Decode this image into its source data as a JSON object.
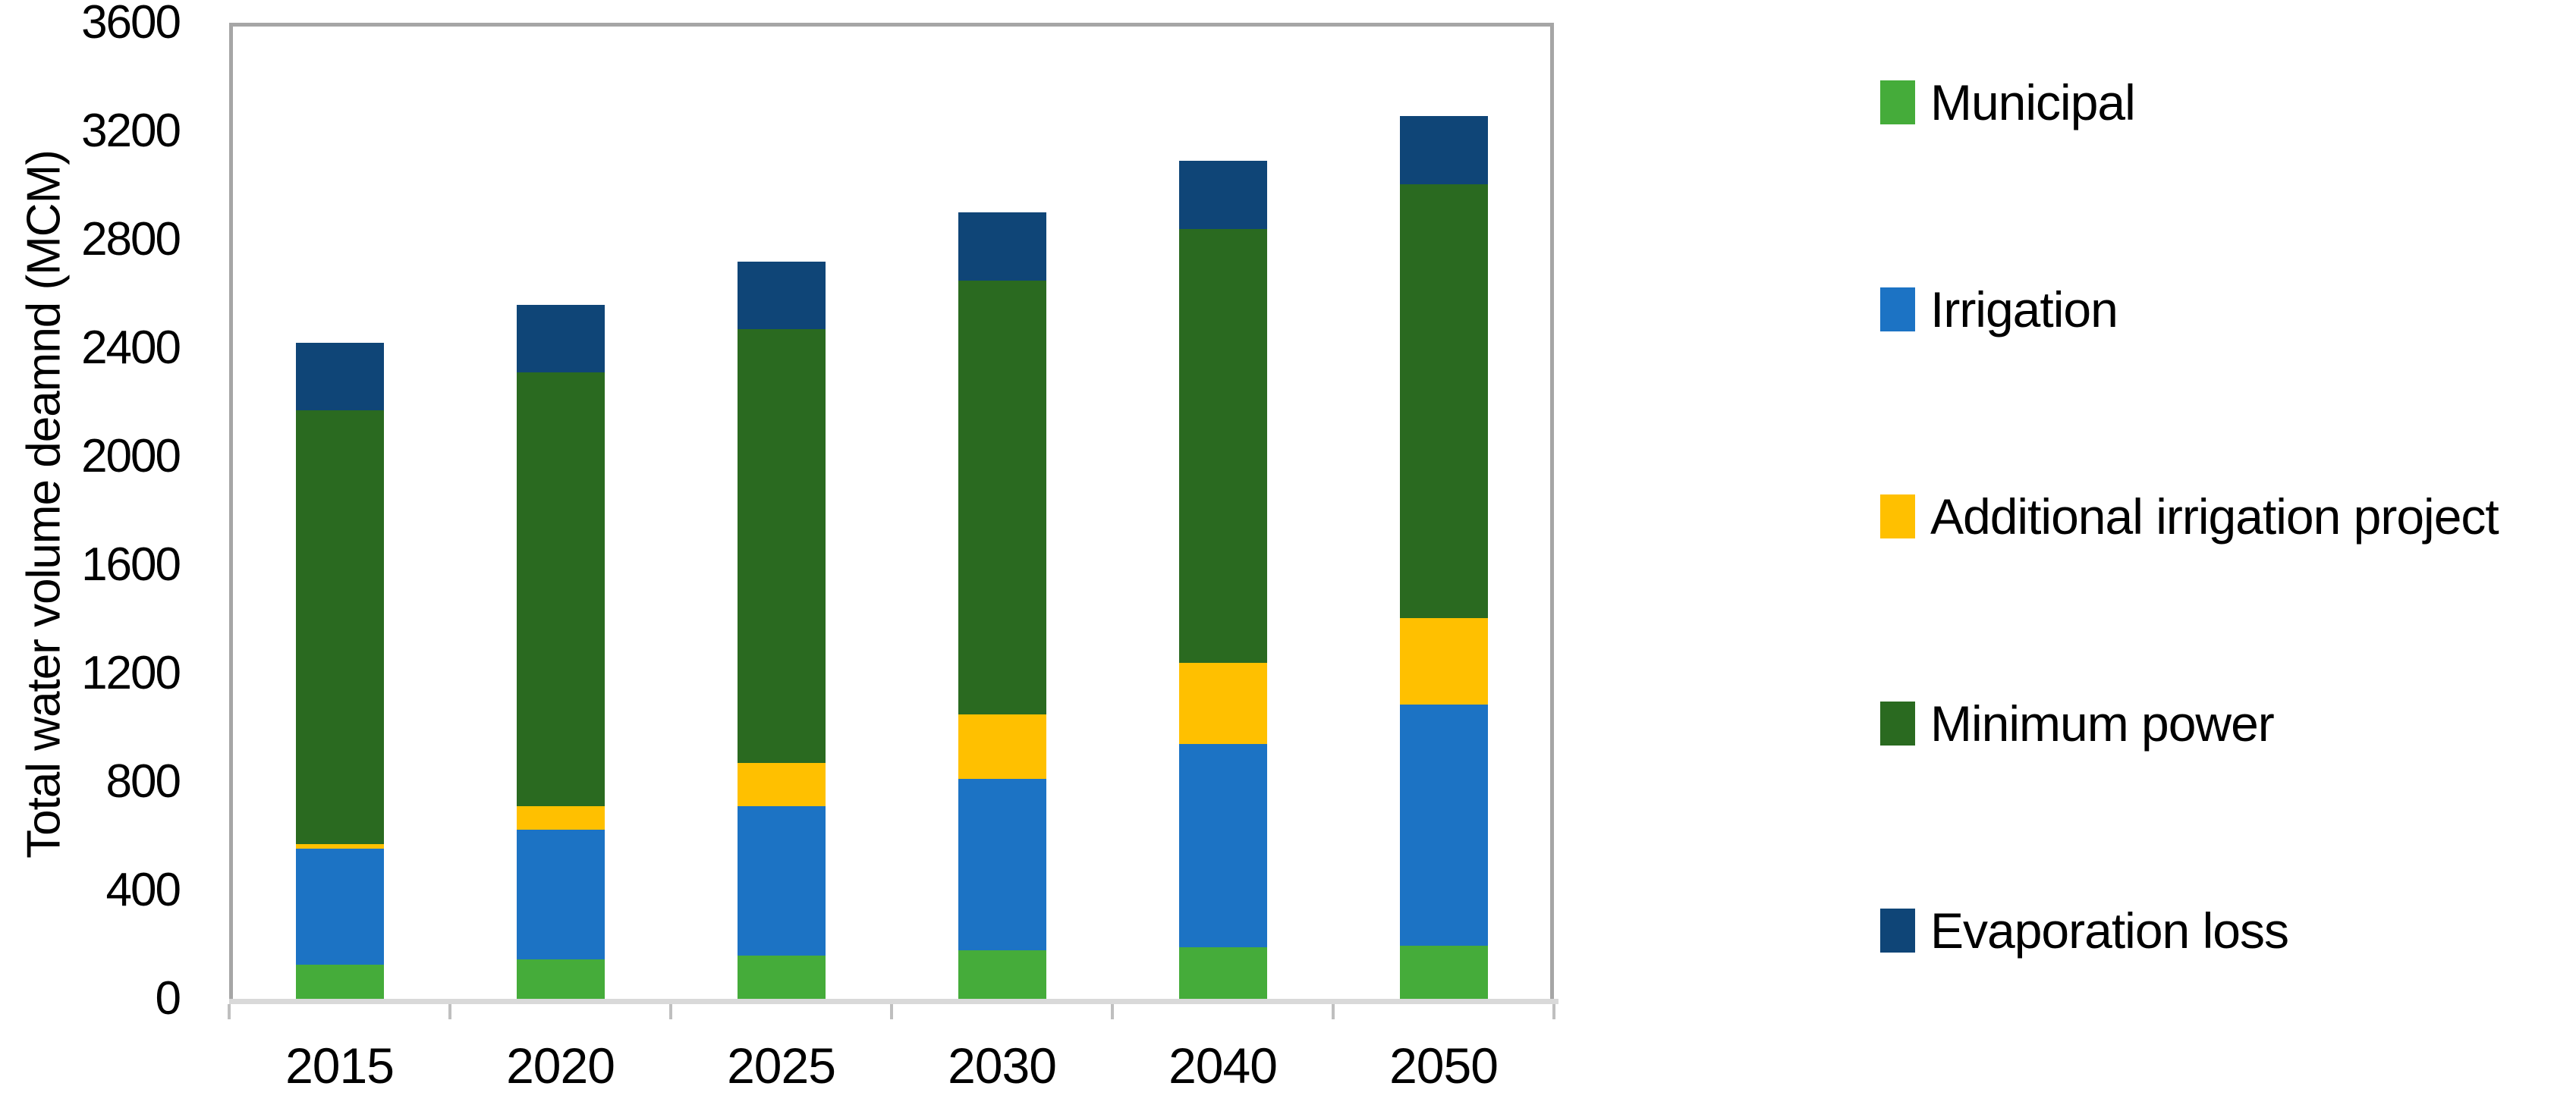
{
  "chart_data": {
    "type": "bar",
    "stacked": true,
    "title": "",
    "categories": [
      "2015",
      "2020",
      "2025",
      "2030",
      "2040",
      "2050"
    ],
    "series": [
      {
        "name": "Municipal",
        "color": "#45AC3A",
        "values": [
          125,
          145,
          160,
          180,
          190,
          195
        ]
      },
      {
        "name": "Irrigation",
        "color": "#1C73C4",
        "values": [
          430,
          480,
          550,
          630,
          750,
          890
        ]
      },
      {
        "name": "Additional irrigation project",
        "color": "#FFC000",
        "values": [
          15,
          85,
          160,
          240,
          300,
          320
        ]
      },
      {
        "name": "Minimum power",
        "color": "#2A6A20",
        "values": [
          1600,
          1600,
          1600,
          1600,
          1600,
          1600
        ]
      },
      {
        "name": "Evaporation loss",
        "color": "#0F4577",
        "values": [
          250,
          250,
          250,
          250,
          250,
          250
        ]
      }
    ],
    "xlabel": "",
    "ylabel": "Total water volume deamnd (MCM)",
    "ylim": [
      0,
      3600
    ],
    "y_ticks": [
      0,
      400,
      800,
      1200,
      1600,
      2000,
      2400,
      2800,
      3200,
      3600
    ],
    "grid": false,
    "legend_position": "right"
  }
}
